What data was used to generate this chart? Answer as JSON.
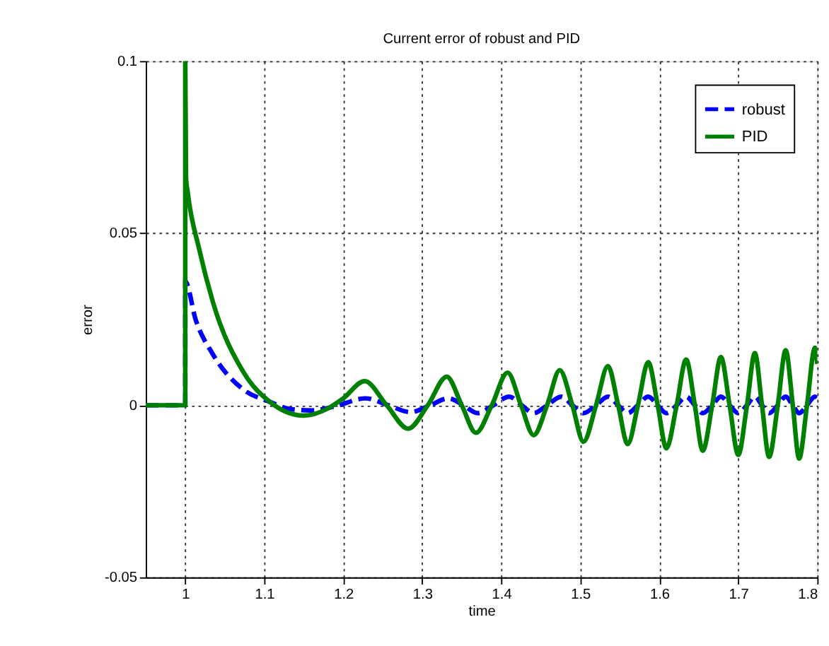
{
  "chart_data": {
    "type": "line",
    "title": "Current error of robust and PID",
    "xlabel": "time",
    "ylabel": "error",
    "xlim": [
      0.95,
      1.8
    ],
    "ylim": [
      -0.05,
      0.1
    ],
    "xticks": [
      1,
      1.1,
      1.2,
      1.3,
      1.4,
      1.5,
      1.6,
      1.7,
      1.8
    ],
    "yticks": [
      -0.05,
      0,
      0.05,
      0.1
    ],
    "grid": true,
    "legend": "top right",
    "marker": "none",
    "series": [
      {
        "name": "robust",
        "color": "#0000ff",
        "line_style": "dashed",
        "x": [
          0.95,
          1.0,
          1.0,
          1.013,
          1.035,
          1.074,
          1.107,
          1.133,
          1.16,
          1.19,
          1.228,
          1.257,
          1.285,
          1.31,
          1.333,
          1.352,
          1.37,
          1.39,
          1.41,
          1.426,
          1.441,
          1.458,
          1.476,
          1.49,
          1.504,
          1.52,
          1.535,
          1.548,
          1.56,
          1.573,
          1.586,
          1.598,
          1.609,
          1.622,
          1.634,
          1.645,
          1.655,
          1.667,
          1.678,
          1.689,
          1.7,
          1.711,
          1.721,
          1.73,
          1.739,
          1.75,
          1.76,
          1.769,
          1.777,
          1.787,
          1.797,
          1.8
        ],
        "values": [
          0,
          0,
          0.036,
          0.025,
          0.0148,
          0.0045,
          0.001,
          -0.0011,
          -0.0015,
          -0.0003,
          0.002,
          0,
          -0.002,
          0,
          0.002,
          0,
          -0.0023,
          0,
          0.0025,
          0,
          -0.0023,
          0,
          0.0025,
          0,
          -0.0023,
          0,
          0.0025,
          0,
          -0.0023,
          0,
          0.0025,
          0,
          -0.0023,
          0,
          0.0025,
          0,
          -0.0023,
          0,
          0.0025,
          0,
          -0.0023,
          0,
          0.0025,
          0,
          -0.0023,
          0,
          0.0025,
          0,
          -0.0023,
          0,
          0.0025,
          0.002
        ]
      },
      {
        "name": "PID",
        "color": "#008000",
        "line_style": "solid",
        "x": [
          0.95,
          1.0,
          1.0,
          1.001,
          1.003,
          1.018,
          1.035,
          1.074,
          1.107,
          1.15,
          1.18,
          1.2,
          1.227,
          1.255,
          1.282,
          1.307,
          1.331,
          1.35,
          1.368,
          1.388,
          1.408,
          1.425,
          1.441,
          1.458,
          1.474,
          1.49,
          1.504,
          1.52,
          1.535,
          1.548,
          1.56,
          1.573,
          1.586,
          1.598,
          1.609,
          1.622,
          1.634,
          1.645,
          1.655,
          1.667,
          1.678,
          1.689,
          1.7,
          1.711,
          1.721,
          1.73,
          1.739,
          1.75,
          1.76,
          1.769,
          1.777,
          1.787,
          1.797,
          1.8
        ],
        "values": [
          0,
          0,
          0.1,
          0.066,
          0.062,
          0.045,
          0.03,
          0.0095,
          0.001,
          -0.003,
          -0.001,
          0.002,
          0.007,
          0,
          -0.0068,
          0,
          0.0083,
          0,
          -0.008,
          0,
          0.0095,
          0,
          -0.0087,
          0,
          0.0102,
          0,
          -0.0106,
          0,
          0.0114,
          0,
          -0.0113,
          0,
          0.0125,
          0,
          -0.0125,
          0,
          0.0133,
          0,
          -0.0132,
          0,
          0.014,
          0,
          -0.0144,
          0,
          0.0152,
          0,
          -0.015,
          0,
          0.016,
          0,
          -0.0155,
          0,
          0.0167,
          0.012
        ]
      }
    ]
  }
}
